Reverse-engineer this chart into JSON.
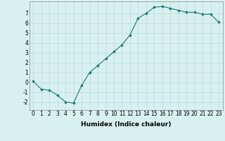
{
  "x": [
    0,
    1,
    2,
    3,
    4,
    5,
    6,
    7,
    8,
    9,
    10,
    11,
    12,
    13,
    14,
    15,
    16,
    17,
    18,
    19,
    20,
    21,
    22,
    23
  ],
  "y": [
    0.1,
    -0.7,
    -0.8,
    -1.3,
    -2.0,
    -2.1,
    -0.3,
    1.0,
    1.7,
    2.4,
    3.1,
    3.8,
    4.8,
    6.5,
    7.0,
    7.6,
    7.7,
    7.5,
    7.3,
    7.1,
    7.1,
    6.9,
    6.9,
    6.1
  ],
  "line_color": "#1a7a6e",
  "marker": "D",
  "marker_size": 1.8,
  "bg_color": "#d8f0f0",
  "grid_color": "#b8dcdc",
  "xlabel": "Humidex (Indice chaleur)",
  "xlabel_fontsize": 6.5,
  "xlim": [
    -0.5,
    23.5
  ],
  "ylim": [
    -2.8,
    8.2
  ],
  "yticks": [
    -2,
    -1,
    0,
    1,
    2,
    3,
    4,
    5,
    6,
    7
  ],
  "xticks": [
    0,
    1,
    2,
    3,
    4,
    5,
    6,
    7,
    8,
    9,
    10,
    11,
    12,
    13,
    14,
    15,
    16,
    17,
    18,
    19,
    20,
    21,
    22,
    23
  ],
  "tick_fontsize": 5.5,
  "line_width": 0.8
}
